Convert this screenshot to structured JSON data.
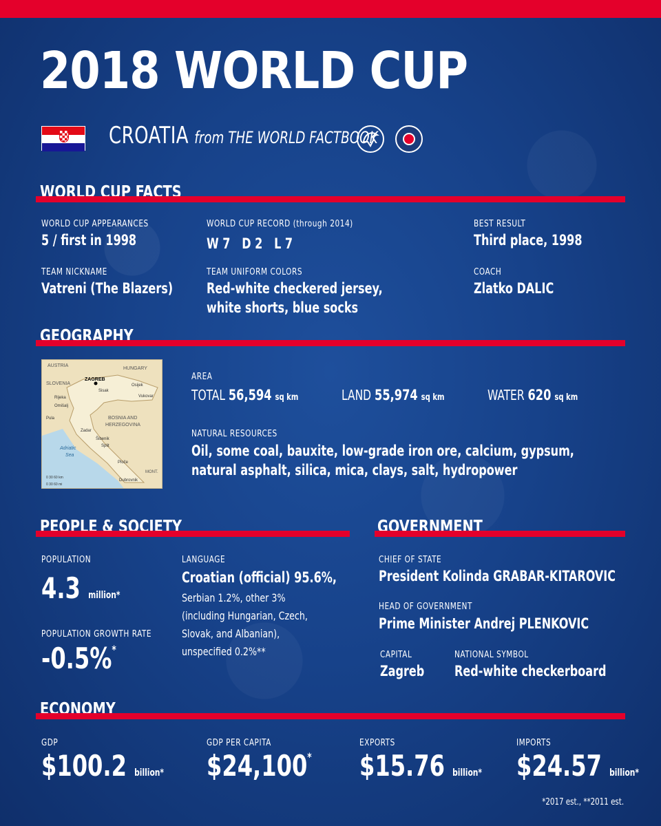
{
  "header": {
    "title": "2018 WORLD CUP",
    "country": "CROATIA",
    "source": "from THE WORLD FACTBOOK",
    "colors": {
      "accent_red": "#e4002b",
      "background_blue": "#17428a"
    }
  },
  "world_cup_facts": {
    "heading": "WORLD CUP FACTS",
    "appearances_label": "WORLD CUP APPEARANCES",
    "appearances_value": "5 / first in 1998",
    "record_label": "WORLD CUP RECORD (through 2014)",
    "record_value": "W 7   D 2   L 7",
    "best_label": "BEST RESULT",
    "best_value": "Third place, 1998",
    "nickname_label": "TEAM NICKNAME",
    "nickname_value": "Vatreni (The Blazers)",
    "uniform_label": "TEAM UNIFORM COLORS",
    "uniform_line1": "Red-white checkered jersey,",
    "uniform_line2": "white shorts, blue socks",
    "coach_label": "COACH",
    "coach_value": "Zlatko DALIC"
  },
  "geography": {
    "heading": "GEOGRAPHY",
    "map_labels": {
      "austria": "AUSTRIA",
      "hungary": "HUNGARY",
      "slovenia": "SLOVENIA",
      "zagreb": "ZAGREB",
      "sisak": "Sisak",
      "osijek": "Osijek",
      "vukovar": "Vukovar",
      "rijeka": "Rijeka",
      "omisalj": "Omišalj",
      "pula": "Pula",
      "bosnia": "BOSNIA AND",
      "herzegovina": "HERZEGOVINA",
      "zadar": "Zadar",
      "sibenik": "Šibenik",
      "split": "Split",
      "adriatic": "Adriatic",
      "sea": "Sea",
      "ploce": "Ploče",
      "mont": "MONT.",
      "dubrovnik": "Dubrovnik",
      "km": "0   30   60 km",
      "mi": "0   30   60 mi"
    },
    "area_label": "AREA",
    "total_label": "TOTAL",
    "total_value": "56,594",
    "total_unit": "sq km",
    "land_label": "LAND",
    "land_value": "55,974",
    "land_unit": "sq km",
    "water_label": "WATER",
    "water_value": "620",
    "water_unit": "sq km",
    "resources_label": "NATURAL RESOURCES",
    "resources_line1": "Oil, some coal, bauxite, low-grade iron ore, calcium, gypsum,",
    "resources_line2": "natural asphalt, silica, mica, clays, salt, hydropower"
  },
  "people": {
    "heading": "PEOPLE & SOCIETY",
    "population_label": "POPULATION",
    "population_value": "4.3",
    "population_unit": "million*",
    "growth_label": "POPULATION GROWTH RATE",
    "growth_value": "-0.5%",
    "growth_mark": "*",
    "language_label": "LANGUAGE",
    "language_main": "Croatian (official) 95.6%,",
    "language_line1": "Serbian 1.2%, other 3%",
    "language_line2": "(including Hungarian, Czech,",
    "language_line3": "Slovak, and Albanian),",
    "language_line4": "unspecified 0.2%**"
  },
  "government": {
    "heading": "GOVERNMENT",
    "chief_label": "CHIEF OF STATE",
    "chief_value": "President Kolinda GRABAR-KITAROVIC",
    "head_label": "HEAD OF GOVERNMENT",
    "head_value": "Prime Minister Andrej PLENKOVIC",
    "capital_label": "CAPITAL",
    "capital_value": "Zagreb",
    "symbol_label": "NATIONAL SYMBOL",
    "symbol_value": "Red-white checkerboard"
  },
  "economy": {
    "heading": "ECONOMY",
    "gdp_label": "GDP",
    "gdp_value": "$100.2",
    "gdp_unit": "billion*",
    "gdppc_label": "GDP PER CAPITA",
    "gdppc_value": "$24,100",
    "gdppc_mark": "*",
    "exports_label": "EXPORTS",
    "exports_value": "$15.76",
    "exports_unit": "billion*",
    "imports_label": "IMPORTS",
    "imports_value": "$24.57",
    "imports_unit": "billion*"
  },
  "footnote": "*2017 est., **2011 est."
}
